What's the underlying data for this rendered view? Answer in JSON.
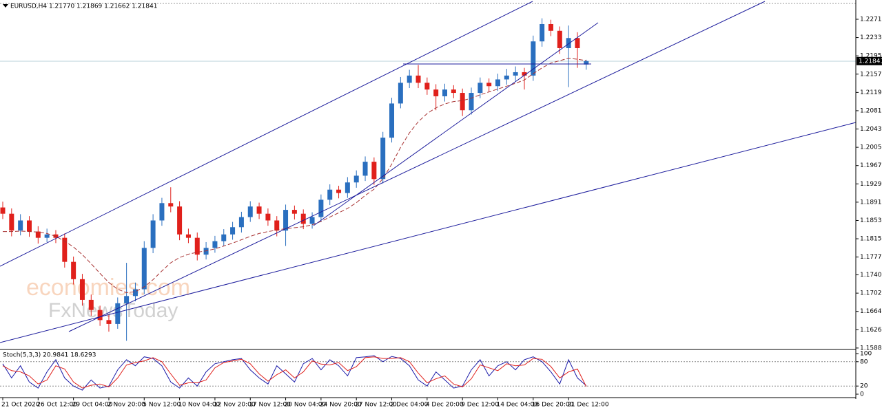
{
  "chart_data": [
    {
      "type": "candlestick",
      "header": "EURUSD,H4  1.21770 1.21869 1.21662 1.21841",
      "watermarks": [
        "economies.com",
        "FxNewsToday"
      ],
      "categories": [
        "21 Oct 2020",
        null,
        null,
        null,
        "26 Oct 12:00",
        null,
        null,
        null,
        "29 Oct 04:00",
        null,
        null,
        null,
        "2 Nov 20:00",
        null,
        null,
        null,
        "5 Nov 12:00",
        null,
        null,
        null,
        "10 Nov 04:00",
        null,
        null,
        null,
        "12 Nov 20:00",
        null,
        null,
        null,
        "17 Nov 12:00",
        null,
        null,
        null,
        "20 Nov 04:00",
        null,
        null,
        null,
        "24 Nov 20:00",
        null,
        null,
        null,
        "27 Nov 12:00",
        null,
        null,
        null,
        "2 Dec 04:00",
        null,
        null,
        null,
        "4 Dec 20:00",
        null,
        null,
        null,
        "9 Dec 12:00",
        null,
        null,
        null,
        "14 Dec 04:00",
        null,
        null,
        null,
        "16 Dec 20:00",
        null,
        null,
        null,
        "21 Dec 12:00",
        null,
        null
      ],
      "open": [
        1.188,
        1.1867,
        1.1832,
        1.1853,
        1.183,
        1.1817,
        1.1824,
        1.1817,
        1.1767,
        1.1731,
        1.1688,
        1.1667,
        1.1646,
        1.1638,
        1.1681,
        1.1696,
        1.171,
        1.1796,
        1.1853,
        1.1889,
        1.1882,
        1.1824,
        1.1817,
        1.1782,
        1.1796,
        1.181,
        1.1824,
        1.1839,
        1.186,
        1.1882,
        1.1867,
        1.1853,
        1.1832,
        1.1875,
        1.1867,
        1.1846,
        1.186,
        1.1896,
        1.1917,
        1.191,
        1.1932,
        1.1946,
        1.1975,
        1.1939,
        1.2025,
        1.2096,
        1.2139,
        1.2154,
        1.2139,
        1.2125,
        1.2111,
        1.2125,
        1.2118,
        1.2082,
        1.2118,
        1.2139,
        1.2132,
        1.2146,
        1.2154,
        1.2161,
        1.2154,
        1.2225,
        1.2261,
        1.2247,
        1.2211,
        1.2232,
        1.2177
      ],
      "high": [
        1.1892,
        1.1878,
        1.1866,
        1.1862,
        1.1841,
        1.1836,
        1.1833,
        1.1826,
        1.1778,
        1.1742,
        1.1699,
        1.1676,
        1.1658,
        1.1693,
        1.1765,
        1.1724,
        1.181,
        1.1866,
        1.19,
        1.1922,
        1.1893,
        1.1836,
        1.1828,
        1.1808,
        1.1821,
        1.1835,
        1.185,
        1.1871,
        1.1893,
        1.189,
        1.1878,
        1.1862,
        1.1886,
        1.1884,
        1.1876,
        1.187,
        1.1907,
        1.1928,
        1.1925,
        1.1943,
        1.1957,
        1.1986,
        1.1984,
        1.2037,
        1.2108,
        1.2151,
        1.2166,
        1.2176,
        1.215,
        1.2136,
        1.2137,
        1.2134,
        1.2127,
        1.2129,
        1.215,
        1.2148,
        1.2158,
        1.2168,
        1.2173,
        1.217,
        1.2237,
        1.2273,
        1.227,
        1.2256,
        1.2258,
        1.2244,
        1.21869
      ],
      "low": [
        1.1856,
        1.182,
        1.1822,
        1.1819,
        1.1805,
        1.1808,
        1.1806,
        1.1755,
        1.172,
        1.1676,
        1.1655,
        1.1634,
        1.1622,
        1.1628,
        1.1603,
        1.1685,
        1.17,
        1.1785,
        1.1842,
        1.187,
        1.1812,
        1.1806,
        1.177,
        1.1772,
        1.1786,
        1.18,
        1.1813,
        1.1828,
        1.185,
        1.1856,
        1.1842,
        1.182,
        1.18,
        1.1855,
        1.1835,
        1.1836,
        1.185,
        1.1885,
        1.1899,
        1.19,
        1.1921,
        1.1935,
        1.1927,
        1.193,
        1.2015,
        1.2086,
        1.2128,
        1.2128,
        1.2114,
        1.2082,
        1.21,
        1.2107,
        1.207,
        1.2073,
        1.2107,
        1.2121,
        1.2122,
        1.2135,
        1.2143,
        1.2125,
        1.2143,
        1.2214,
        1.2236,
        1.2199,
        1.213,
        1.217,
        1.21662
      ],
      "close": [
        1.1867,
        1.1832,
        1.1853,
        1.183,
        1.1817,
        1.1824,
        1.1817,
        1.1767,
        1.1731,
        1.1688,
        1.1667,
        1.1646,
        1.1638,
        1.1681,
        1.1696,
        1.171,
        1.1796,
        1.1853,
        1.1889,
        1.1882,
        1.1824,
        1.1817,
        1.1782,
        1.1796,
        1.181,
        1.1824,
        1.1839,
        1.186,
        1.1882,
        1.1867,
        1.1853,
        1.1832,
        1.1875,
        1.1867,
        1.1846,
        1.186,
        1.1896,
        1.1917,
        1.191,
        1.1932,
        1.1946,
        1.1975,
        1.1939,
        1.2025,
        1.2096,
        1.2139,
        1.2154,
        1.2139,
        1.2125,
        1.2111,
        1.2125,
        1.2118,
        1.2082,
        1.2118,
        1.2139,
        1.2132,
        1.2146,
        1.2154,
        1.2161,
        1.2154,
        1.2225,
        1.2261,
        1.2247,
        1.2211,
        1.2232,
        1.2211,
        1.21841
      ],
      "up_color": "#2a6fbf",
      "down_color": "#e0201b",
      "moving_average": {
        "color": "#a83232",
        "values": [
          1.183,
          1.183,
          1.1831,
          1.183,
          1.1829,
          1.1826,
          1.182,
          1.181,
          1.1798,
          1.1782,
          1.1763,
          1.1743,
          1.1724,
          1.171,
          1.1703,
          1.1705,
          1.1715,
          1.173,
          1.1748,
          1.1765,
          1.1776,
          1.1783,
          1.1787,
          1.179,
          1.1794,
          1.18,
          1.1806,
          1.1813,
          1.182,
          1.1826,
          1.183,
          1.1833,
          1.1836,
          1.1838,
          1.184,
          1.1844,
          1.1851,
          1.186,
          1.1869,
          1.1878,
          1.189,
          1.1905,
          1.1918,
          1.194,
          1.197,
          1.2005,
          1.2035,
          1.2058,
          1.2075,
          1.2087,
          1.2095,
          1.21,
          1.2102,
          1.2107,
          1.2114,
          1.212,
          1.2126,
          1.2132,
          1.2138,
          1.2145,
          1.2158,
          1.217,
          1.218,
          1.2185,
          1.219,
          1.2188,
          1.2185
        ]
      },
      "current_price": 1.21841,
      "ylim": [
        1.1585,
        1.2311
      ],
      "yticks": [
        {
          "value": 1.2271,
          "label": "1.22710"
        },
        {
          "value": 1.2233,
          "label": "1.22330"
        },
        {
          "value": 1.2195,
          "label": "1.21950"
        },
        {
          "value": 1.2157,
          "label": "1.21570"
        },
        {
          "value": 1.2119,
          "label": "1.21190"
        },
        {
          "value": 1.2081,
          "label": "1.20810"
        },
        {
          "value": 1.2043,
          "label": "1.20430"
        },
        {
          "value": 1.2005,
          "label": "1.20050"
        },
        {
          "value": 1.1967,
          "label": "1.19670"
        },
        {
          "value": 1.1929,
          "label": "1.19290"
        },
        {
          "value": 1.1891,
          "label": "1.18910"
        },
        {
          "value": 1.1853,
          "label": "1.18530"
        },
        {
          "value": 1.1815,
          "label": "1.18150"
        },
        {
          "value": 1.1777,
          "label": "1.17770"
        },
        {
          "value": 1.174,
          "label": "1.17400"
        },
        {
          "value": 1.1702,
          "label": "1.17020"
        },
        {
          "value": 1.1664,
          "label": "1.16640"
        },
        {
          "value": 1.1626,
          "label": "1.16260"
        },
        {
          "value": 1.1588,
          "label": "1.15880"
        }
      ]
    },
    {
      "type": "line",
      "title": "Stoch(5,3,3) 20.9841 18.6293",
      "series": [
        {
          "color": "#1a1aa8",
          "values": [
            75,
            40,
            70,
            30,
            15,
            55,
            85,
            40,
            20,
            10,
            35,
            15,
            20,
            60,
            85,
            70,
            92,
            88,
            70,
            30,
            15,
            40,
            20,
            55,
            75,
            80,
            85,
            88,
            60,
            40,
            25,
            70,
            50,
            30,
            75,
            88,
            60,
            85,
            70,
            45,
            90,
            92,
            95,
            80,
            93,
            88,
            70,
            35,
            20,
            55,
            35,
            15,
            20,
            60,
            85,
            45,
            70,
            80,
            60,
            85,
            92,
            80,
            55,
            25,
            85,
            40,
            20.9841
          ]
        },
        {
          "color": "#e0201b",
          "values": [
            70,
            58,
            55,
            45,
            25,
            35,
            70,
            62,
            30,
            15,
            22,
            25,
            18,
            40,
            72,
            78,
            82,
            90,
            80,
            50,
            22,
            28,
            28,
            35,
            65,
            78,
            82,
            86,
            75,
            50,
            32,
            48,
            60,
            40,
            55,
            82,
            74,
            72,
            78,
            58,
            68,
            90,
            92,
            88,
            88,
            90,
            80,
            52,
            28,
            38,
            45,
            25,
            18,
            38,
            72,
            65,
            58,
            75,
            70,
            72,
            88,
            86,
            68,
            40,
            55,
            62,
            18.6293
          ]
        }
      ],
      "levels": [
        20,
        80
      ],
      "ylim": [
        -8.5,
        108.5
      ],
      "yticks": [
        100,
        80,
        20,
        0
      ]
    }
  ]
}
